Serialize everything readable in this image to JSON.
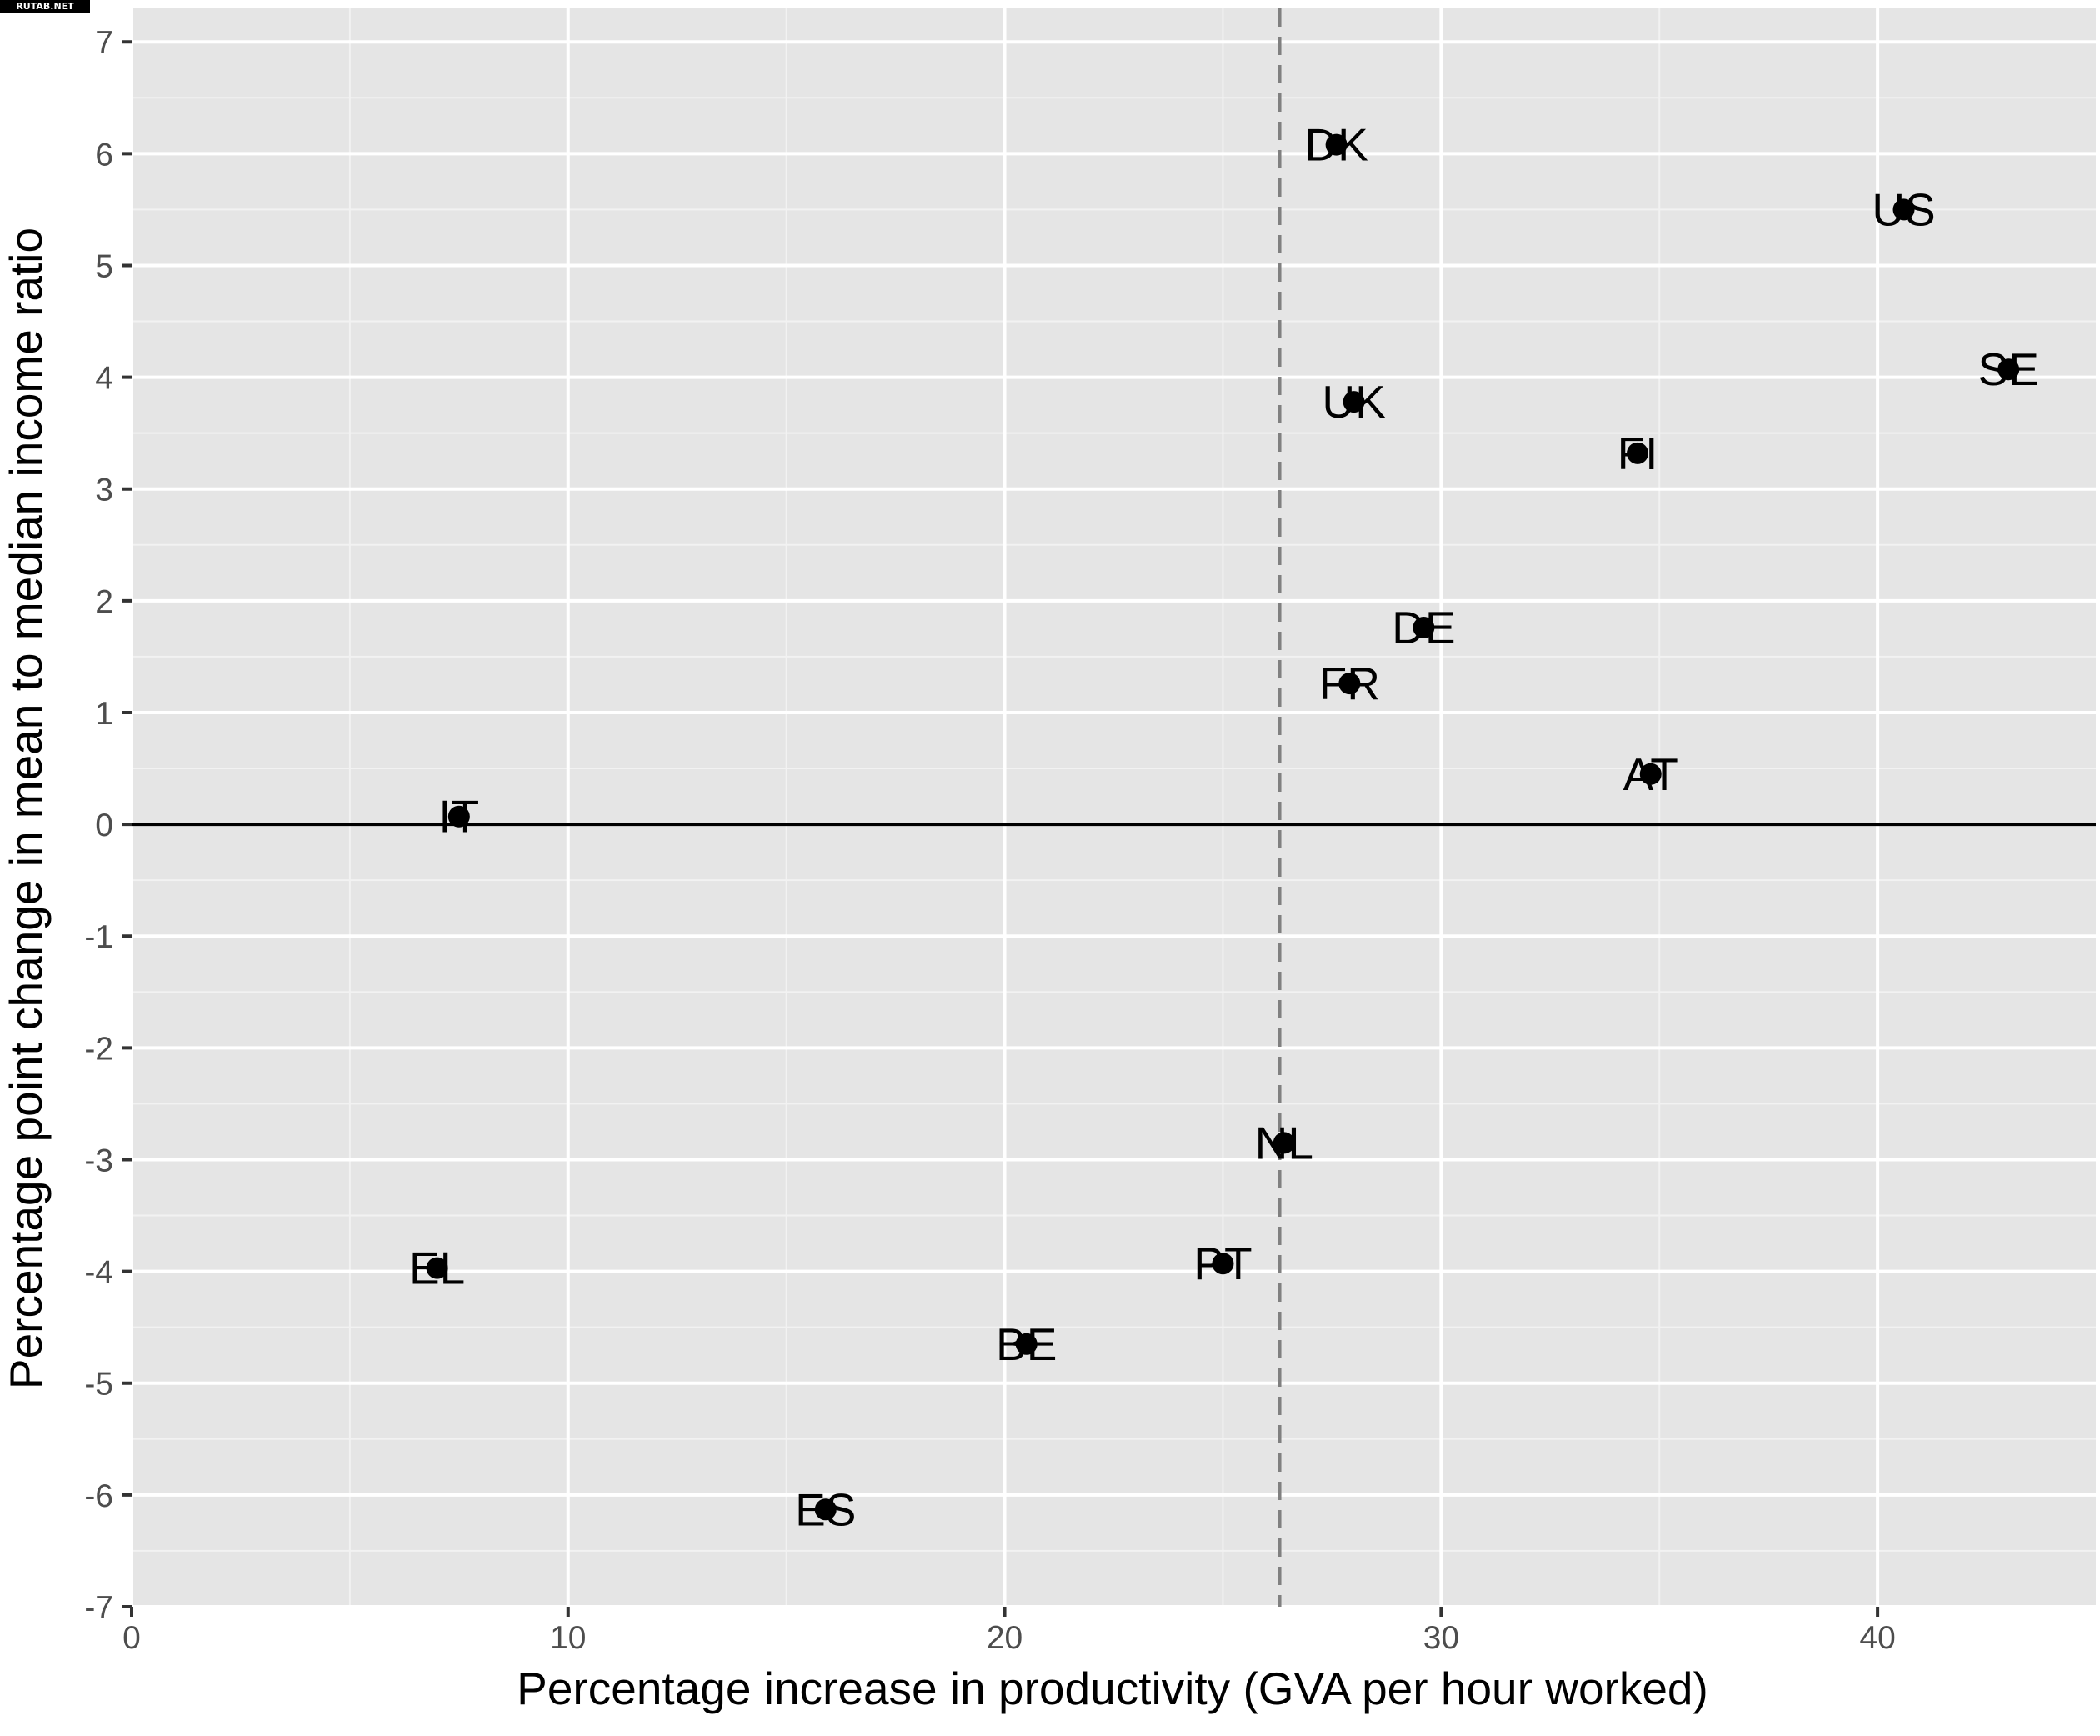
{
  "watermark": "RUTAB.NET",
  "chart_data": {
    "type": "scatter",
    "title": "",
    "xlabel": "Percentage increase in productivity (GVA per hour worked)",
    "ylabel": "Percentage point change in mean to median income ratio",
    "xlim": [
      0,
      45
    ],
    "ylim": [
      -7,
      7.3
    ],
    "x_ticks": [
      0,
      10,
      20,
      30,
      40
    ],
    "y_ticks": [
      -7,
      -6,
      -5,
      -4,
      -3,
      -2,
      -1,
      0,
      1,
      2,
      3,
      4,
      5,
      6,
      7
    ],
    "grid": true,
    "reference_lines": [
      {
        "axis": "y",
        "value": 0,
        "style": "solid",
        "color": "#000000"
      },
      {
        "axis": "x",
        "value": 26.3,
        "style": "dashed",
        "color": "#808080"
      }
    ],
    "points": [
      {
        "label": "DK",
        "x": 27.6,
        "y": 6.08
      },
      {
        "label": "US",
        "x": 40.6,
        "y": 5.5
      },
      {
        "label": "SE",
        "x": 43.0,
        "y": 4.07
      },
      {
        "label": "UK",
        "x": 28.0,
        "y": 3.78
      },
      {
        "label": "FI",
        "x": 34.5,
        "y": 3.32
      },
      {
        "label": "DE",
        "x": 29.6,
        "y": 1.76
      },
      {
        "label": "FR",
        "x": 27.9,
        "y": 1.26
      },
      {
        "label": "AT",
        "x": 34.8,
        "y": 0.45
      },
      {
        "label": "IT",
        "x": 7.5,
        "y": 0.07
      },
      {
        "label": "NL",
        "x": 26.4,
        "y": -2.85
      },
      {
        "label": "EL",
        "x": 7.0,
        "y": -3.97
      },
      {
        "label": "PT",
        "x": 25.0,
        "y": -3.93
      },
      {
        "label": "BE",
        "x": 20.5,
        "y": -4.65
      },
      {
        "label": "ES",
        "x": 15.9,
        "y": -6.13
      }
    ],
    "colors": {
      "panel": "#e5e5e5",
      "grid_major": "#ffffff",
      "grid_minor": "#f2f2f2",
      "point": "#000000"
    }
  }
}
